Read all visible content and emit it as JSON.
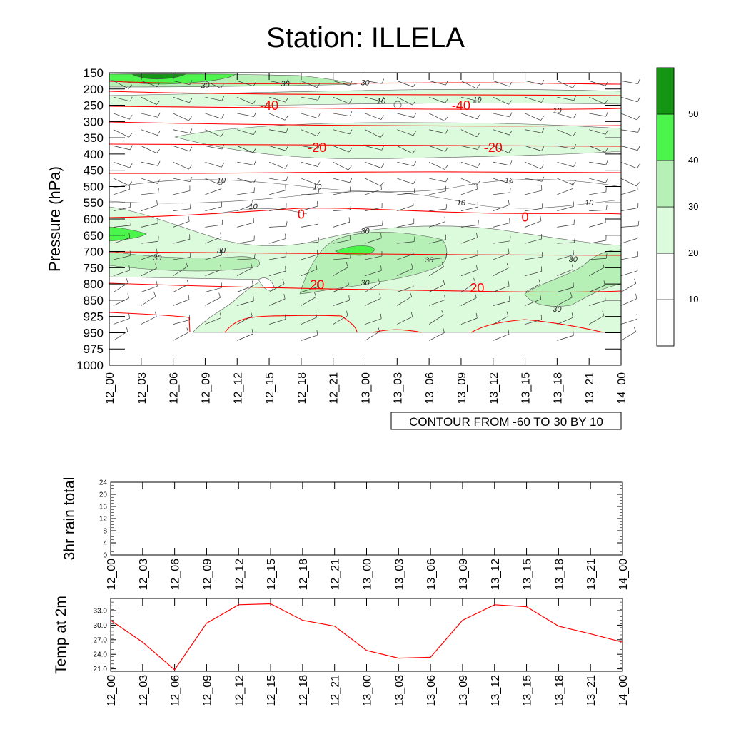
{
  "title": "Station: ILLELA",
  "time_labels": [
    "12_00",
    "12_03",
    "12_06",
    "12_09",
    "12_12",
    "12_15",
    "12_18",
    "12_21",
    "13_00",
    "13_03",
    "13_06",
    "13_09",
    "13_12",
    "13_15",
    "13_18",
    "13_21",
    "14_00"
  ],
  "chart_data": [
    {
      "type": "heatmap",
      "name": "pressure-time-section",
      "ylabel": "Pressure (hPa)",
      "xlabel": "",
      "pressure_levels": [
        150,
        200,
        250,
        300,
        350,
        400,
        450,
        500,
        550,
        600,
        650,
        700,
        750,
        800,
        850,
        925,
        950,
        975,
        1000
      ],
      "ylim": [
        1000,
        150
      ],
      "shading": {
        "levels": [
          10,
          20,
          30,
          40,
          50
        ],
        "colors": [
          "#ffffff",
          "#ffffff",
          "#dcfbdc",
          "#b6f0b6",
          "#4cf54c",
          "#149614"
        ],
        "legend_labels": [
          "10",
          "20",
          "30",
          "40",
          "50"
        ]
      },
      "contour_info": "CONTOUR FROM -60 TO 30 BY 10",
      "temperature_labels": [
        {
          "text": "-40",
          "time": 5.0,
          "p": 253
        },
        {
          "text": "-40",
          "time": 11.0,
          "p": 253
        },
        {
          "text": "-20",
          "time": 6.5,
          "p": 383
        },
        {
          "text": "-20",
          "time": 12.0,
          "p": 383
        },
        {
          "text": "0",
          "time": 6.0,
          "p": 588
        },
        {
          "text": "0",
          "time": 13.0,
          "p": 597
        },
        {
          "text": "20",
          "time": 6.5,
          "p": 805
        },
        {
          "text": "20",
          "time": 11.5,
          "p": 815
        }
      ],
      "humidity_labels": [
        {
          "text": "30",
          "time": 3.0,
          "p": 188
        },
        {
          "text": "30",
          "time": 5.5,
          "p": 183
        },
        {
          "text": "30",
          "time": 8.0,
          "p": 180
        },
        {
          "text": "10",
          "time": 8.5,
          "p": 237
        },
        {
          "text": "10",
          "time": 11.5,
          "p": 232
        },
        {
          "text": "10",
          "time": 14.0,
          "p": 265
        },
        {
          "text": "10",
          "time": 3.5,
          "p": 480
        },
        {
          "text": "10",
          "time": 6.5,
          "p": 500
        },
        {
          "text": "10",
          "time": 12.5,
          "p": 480
        },
        {
          "text": "10",
          "time": 4.5,
          "p": 560
        },
        {
          "text": "10",
          "time": 11.0,
          "p": 550
        },
        {
          "text": "10",
          "time": 15.0,
          "p": 550
        },
        {
          "text": "30",
          "time": 8.0,
          "p": 636
        },
        {
          "text": "30",
          "time": 3.5,
          "p": 695
        },
        {
          "text": "30",
          "time": 1.5,
          "p": 718
        },
        {
          "text": "30",
          "time": 10.0,
          "p": 725
        },
        {
          "text": "30",
          "time": 14.5,
          "p": 723
        },
        {
          "text": "30",
          "time": 8.0,
          "p": 795
        },
        {
          "text": "30",
          "time": 14.0,
          "p": 890
        }
      ]
    },
    {
      "type": "line",
      "name": "rain-3hr",
      "ylabel": "3hr rain total",
      "ylim": [
        0,
        24
      ],
      "yticks": [
        0,
        4,
        8,
        12,
        16,
        20,
        24
      ],
      "values": [
        0,
        0,
        0,
        0,
        0,
        0,
        0,
        0,
        0,
        0,
        0,
        0,
        0,
        0,
        0,
        0,
        0
      ]
    },
    {
      "type": "line",
      "name": "temp-2m",
      "ylabel": "Temp at 2m",
      "ylim": [
        20.5,
        35.5
      ],
      "yticks": [
        21.0,
        24.0,
        27.0,
        30.0,
        33.0
      ],
      "ytick_labels": [
        "21.0",
        "24.0",
        "27.0",
        "30.0",
        "33.0"
      ],
      "values": [
        31.0,
        26.5,
        20.8,
        30.4,
        34.2,
        34.4,
        31.0,
        29.8,
        24.8,
        23.2,
        23.4,
        31.0,
        34.2,
        33.8,
        29.8,
        28.2,
        26.5
      ],
      "color": "#ff0000"
    }
  ]
}
